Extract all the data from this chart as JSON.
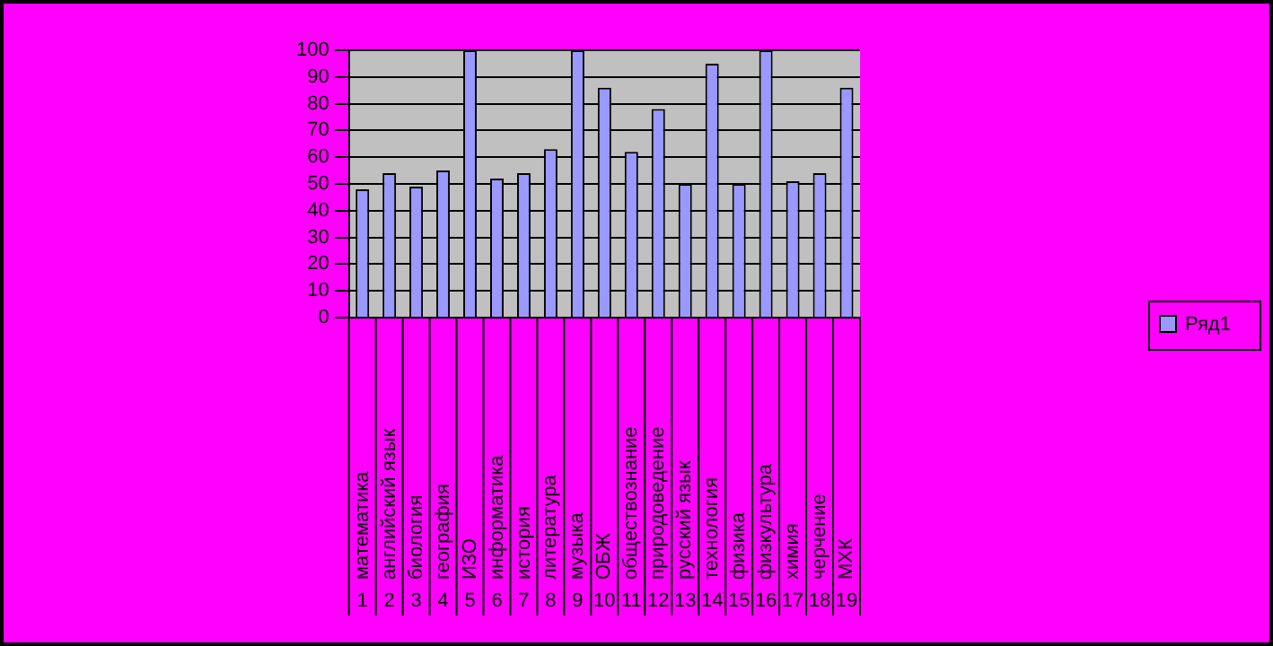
{
  "chart_data": {
    "type": "bar",
    "categories": [
      "1 математика",
      "2 английский язык",
      "3 биология",
      "4 география",
      "5 ИЗО",
      "6 информатика",
      "7 история",
      "8 литература",
      "9 музыка",
      "10 ОБЖ",
      "11 обществознание",
      "12 природоведение",
      "13 русский язык",
      "14 технология",
      "15 физика",
      "16 физкультура",
      "17 химия",
      "18 черчение",
      "19 МХК"
    ],
    "series": [
      {
        "name": "Ряд1",
        "color": "#9999ff",
        "values": [
          48,
          54,
          49,
          55,
          100,
          52,
          54,
          63,
          100,
          86,
          62,
          78,
          50,
          95,
          50,
          100,
          51,
          54,
          86
        ]
      }
    ],
    "ylim": [
      0,
      100
    ],
    "yticks": [
      0,
      10,
      20,
      30,
      40,
      50,
      60,
      70,
      80,
      90,
      100
    ],
    "grid": "y",
    "legend": "right"
  }
}
